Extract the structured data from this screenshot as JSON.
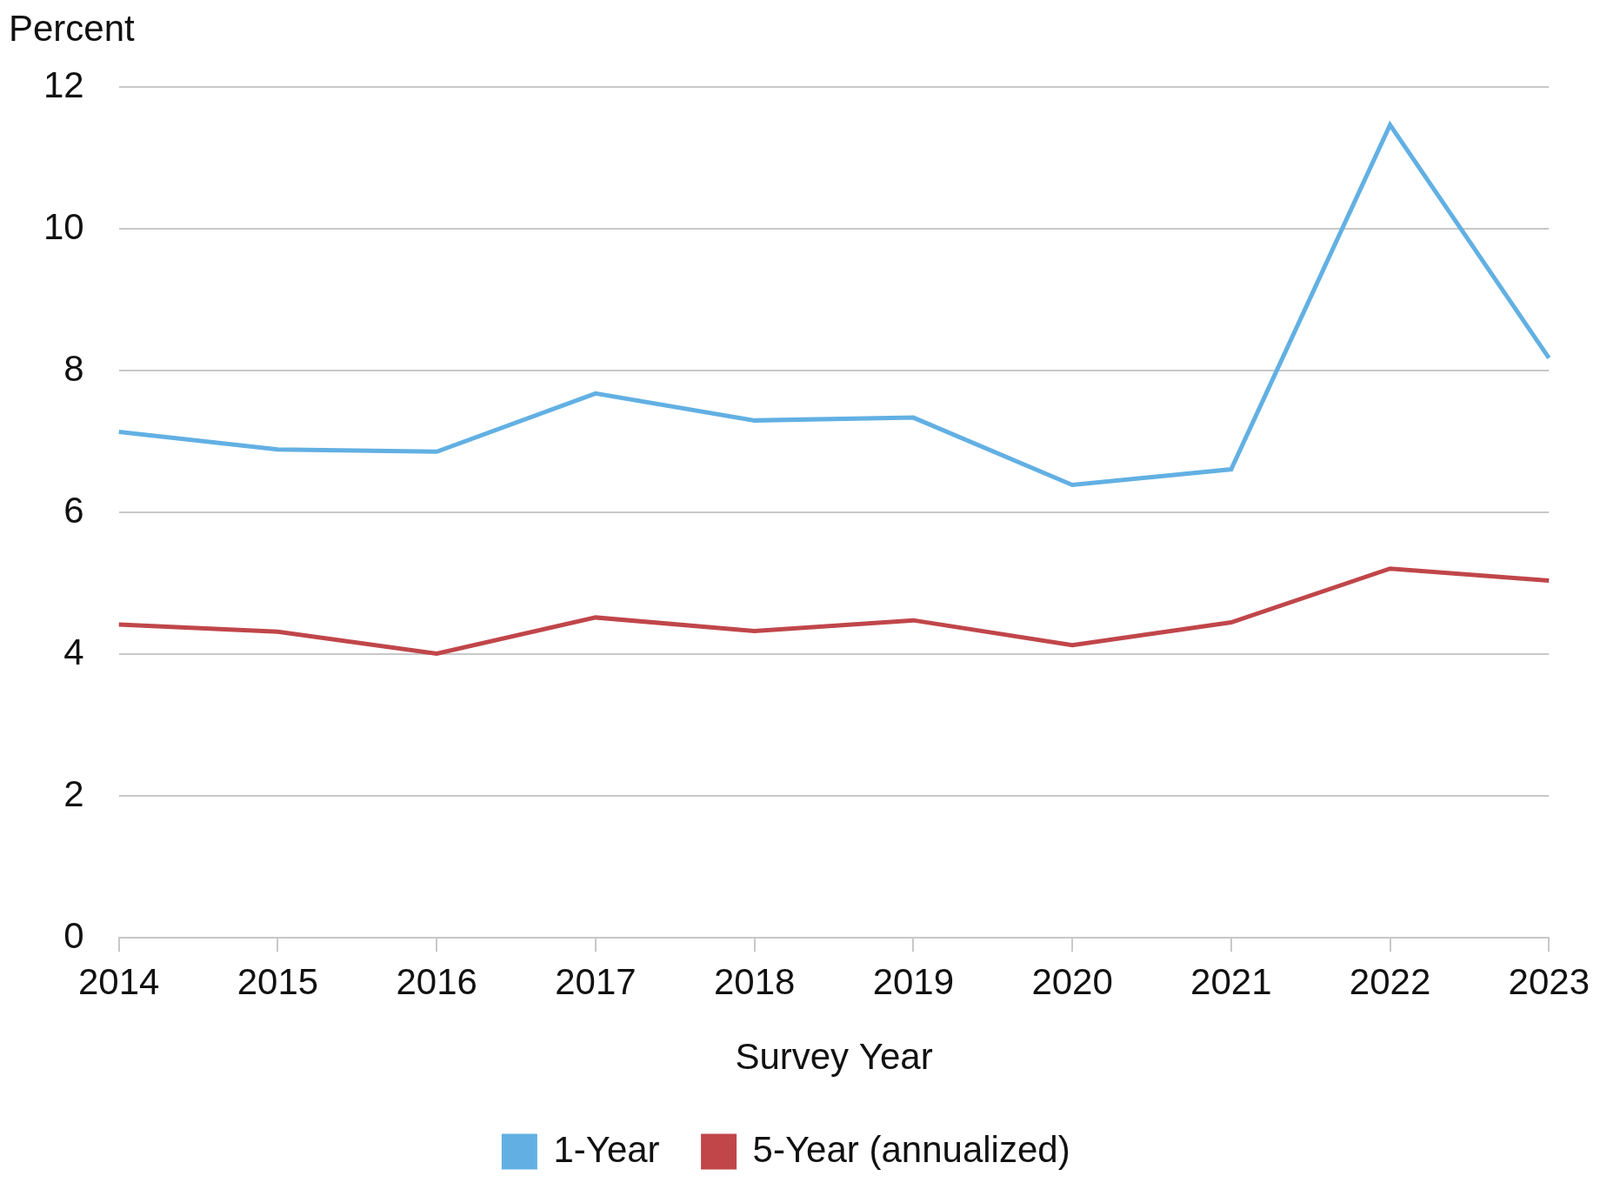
{
  "chart_data": {
    "type": "line",
    "y_label": "Percent",
    "x_label": "Survey Year",
    "categories": [
      "2014",
      "2015",
      "2016",
      "2017",
      "2018",
      "2019",
      "2020",
      "2021",
      "2022",
      "2023"
    ],
    "series": [
      {
        "name": "1-Year",
        "color": "#62b0e3",
        "values": [
          7.14,
          6.89,
          6.86,
          7.68,
          7.3,
          7.34,
          6.39,
          6.61,
          11.47,
          8.18
        ]
      },
      {
        "name": "5-Year (annualized)",
        "color": "#c0464a",
        "values": [
          4.42,
          4.32,
          4.01,
          4.52,
          4.33,
          4.48,
          4.13,
          4.45,
          5.21,
          5.04
        ]
      }
    ],
    "ylim": [
      0,
      12
    ],
    "yticks": [
      0,
      2,
      4,
      6,
      8,
      10,
      12
    ],
    "grid": true,
    "legend": "bottom"
  }
}
